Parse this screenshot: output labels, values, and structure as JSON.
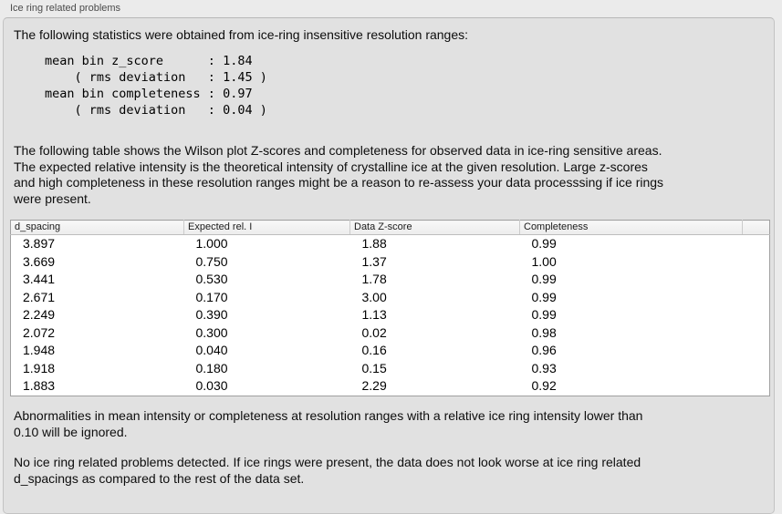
{
  "panel": {
    "title": "Ice ring related problems"
  },
  "sections": {
    "intro": "The following statistics were obtained from ice-ring insensitive resolution ranges:",
    "stats": "mean bin z_score      : 1.84\n    ( rms deviation   : 1.45 )\nmean bin completeness : 0.97\n    ( rms deviation   : 0.04 )",
    "table_description": "The following table shows the Wilson plot Z-scores and completeness for observed data in ice-ring sensitive areas.\nThe expected relative intensity is the theoretical intensity of crystalline ice at the given resolution. Large z-scores\nand high completeness in these resolution ranges might be a reason to re-assess your data processsing if ice rings\nwere present.",
    "ignore_note": "Abnormalities in mean intensity or completeness at resolution ranges with a relative ice ring intensity lower than\n0.10 will be ignored.",
    "conclusion": "No ice ring related problems detected. If ice rings were present, the data does not look worse at ice ring related\nd_spacings as compared to the rest of the data set."
  },
  "table": {
    "columns": [
      "d_spacing",
      "Expected rel. I",
      "Data Z-score",
      "Completeness"
    ],
    "rows": [
      [
        "3.897",
        "1.000",
        "1.88",
        "0.99"
      ],
      [
        "3.669",
        "0.750",
        "1.37",
        "1.00"
      ],
      [
        "3.441",
        "0.530",
        "1.78",
        "0.99"
      ],
      [
        "2.671",
        "0.170",
        "3.00",
        "0.99"
      ],
      [
        "2.249",
        "0.390",
        "1.13",
        "0.99"
      ],
      [
        "2.072",
        "0.300",
        "0.02",
        "0.98"
      ],
      [
        "1.948",
        "0.040",
        "0.16",
        "0.96"
      ],
      [
        "1.918",
        "0.180",
        "0.15",
        "0.93"
      ],
      [
        "1.883",
        "0.030",
        "2.29",
        "0.92"
      ]
    ]
  },
  "colors": {
    "window_bg": "#ebebeb",
    "panel_bg": "#e1e1e1",
    "table_bg": "#ffffff"
  }
}
